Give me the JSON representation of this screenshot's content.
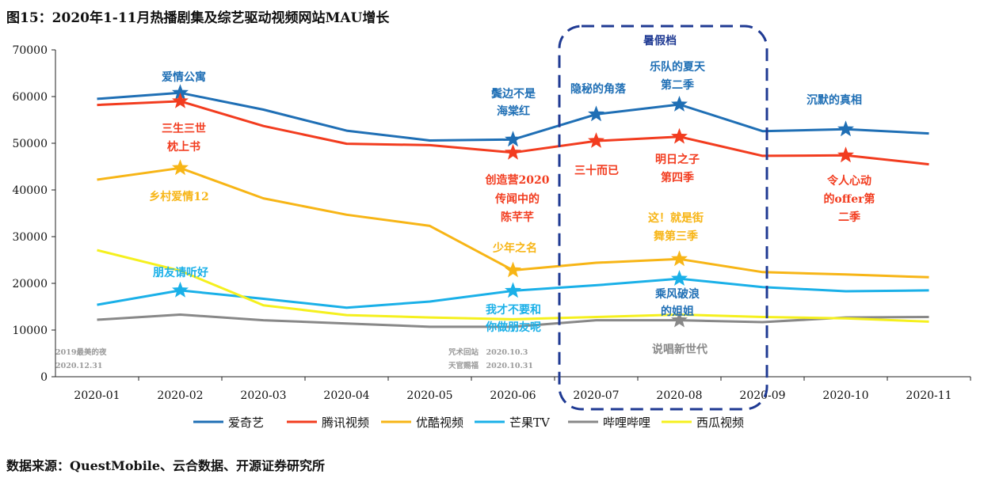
{
  "title": "图15：2020年1-11月热播剧集及综艺驱动视频网站MAU增长",
  "source": "数据来源：QuestMobile、云合数据、开源证券研究所",
  "chart_data": {
    "type": "line",
    "categories": [
      "2020-01",
      "2020-02",
      "2020-03",
      "2020-04",
      "2020-05",
      "2020-06",
      "2020-07",
      "2020-08",
      "2020-09",
      "2020-10",
      "2020-11"
    ],
    "ylim": [
      0,
      70000
    ],
    "yticks": [
      0,
      10000,
      20000,
      30000,
      40000,
      50000,
      60000,
      70000
    ],
    "grid": false,
    "legend_position": "bottom",
    "series": [
      {
        "name": "爱奇艺",
        "color": "#1f6fb5",
        "values": [
          59500,
          60800,
          57200,
          52700,
          50600,
          50800,
          56200,
          58300,
          52600,
          53000,
          52100
        ]
      },
      {
        "name": "腾讯视频",
        "color": "#f23c1f",
        "values": [
          58200,
          59000,
          53700,
          49900,
          49600,
          48000,
          50500,
          51400,
          47300,
          47400,
          45500
        ]
      },
      {
        "name": "优酷视频",
        "color": "#f7b516",
        "values": [
          42200,
          44700,
          38200,
          34700,
          32300,
          22800,
          24400,
          25200,
          22400,
          21900,
          21300
        ]
      },
      {
        "name": "芒果TV",
        "color": "#1ab0e8",
        "values": [
          15400,
          18500,
          16700,
          14800,
          16100,
          18400,
          19600,
          21000,
          19200,
          18300,
          18500
        ]
      },
      {
        "name": "哔哩哔哩",
        "color": "#888888",
        "values": [
          12200,
          13300,
          12100,
          11400,
          10700,
          10700,
          12100,
          12100,
          11700,
          12700,
          12800
        ]
      },
      {
        "name": "西瓜视频",
        "color": "#f5f01e",
        "values": [
          27100,
          22700,
          15300,
          13200,
          12700,
          12300,
          12800,
          13300,
          12800,
          12500,
          11800
        ]
      }
    ],
    "stars": [
      {
        "series": 0,
        "index": 1
      },
      {
        "series": 0,
        "index": 5
      },
      {
        "series": 0,
        "index": 6
      },
      {
        "series": 0,
        "index": 7
      },
      {
        "series": 0,
        "index": 9
      },
      {
        "series": 1,
        "index": 1
      },
      {
        "series": 1,
        "index": 5
      },
      {
        "series": 1,
        "index": 6
      },
      {
        "series": 1,
        "index": 7
      },
      {
        "series": 1,
        "index": 9
      },
      {
        "series": 2,
        "index": 1
      },
      {
        "series": 2,
        "index": 5
      },
      {
        "series": 2,
        "index": 7
      },
      {
        "series": 3,
        "index": 1
      },
      {
        "series": 3,
        "index": 5
      },
      {
        "series": 3,
        "index": 7
      },
      {
        "series": 4,
        "index": 7
      }
    ],
    "annotations": [
      {
        "text": "爱情公寓",
        "color": "#1f6fb5"
      },
      {
        "text": "三生三世",
        "color": "#f23c1f"
      },
      {
        "text": "枕上书",
        "color": "#f23c1f"
      },
      {
        "text": "乡村爱情12",
        "color": "#f7b516"
      },
      {
        "text": "朋友请听好",
        "color": "#1ab0e8"
      },
      {
        "text": "鬓边不是",
        "color": "#1f6fb5"
      },
      {
        "text": "海棠红",
        "color": "#1f6fb5"
      },
      {
        "text": "创造营2020",
        "color": "#f23c1f"
      },
      {
        "text": "传闻中的",
        "color": "#f23c1f"
      },
      {
        "text": "陈芊芊",
        "color": "#f23c1f"
      },
      {
        "text": "少年之名",
        "color": "#f7b516"
      },
      {
        "text": "我才不要和",
        "color": "#1ab0e8"
      },
      {
        "text": "你做朋友呢",
        "color": "#1ab0e8"
      },
      {
        "text": "隐秘的角落",
        "color": "#1f6fb5"
      },
      {
        "text": "三十而已",
        "color": "#f23c1f"
      },
      {
        "text": "乐队的夏天",
        "color": "#1f6fb5"
      },
      {
        "text": "第二季",
        "color": "#1f6fb5"
      },
      {
        "text": "明日之子",
        "color": "#f23c1f"
      },
      {
        "text": "第四季",
        "color": "#f23c1f"
      },
      {
        "text": "这！就是街",
        "color": "#f7b516"
      },
      {
        "text": "舞第三季",
        "color": "#f7b516"
      },
      {
        "text": "乘风破浪",
        "color": "#1f6fb5"
      },
      {
        "text": "的姐姐",
        "color": "#1f6fb5"
      },
      {
        "text": "说唱新世代",
        "color": "#888888"
      },
      {
        "text": "沉默的真相",
        "color": "#1f6fb5"
      },
      {
        "text": "令人心动",
        "color": "#f23c1f"
      },
      {
        "text": "的offer第",
        "color": "#f23c1f"
      },
      {
        "text": "二季",
        "color": "#f23c1f"
      },
      {
        "text": "暑假档",
        "color": "#1f3a93"
      }
    ],
    "notes": [
      "2019最美的夜",
      "2020.12.31",
      "咒术回站　2020.10.3",
      "天官赐福　2020.10.31"
    ],
    "highlight_box_color": "#1f3a93"
  }
}
